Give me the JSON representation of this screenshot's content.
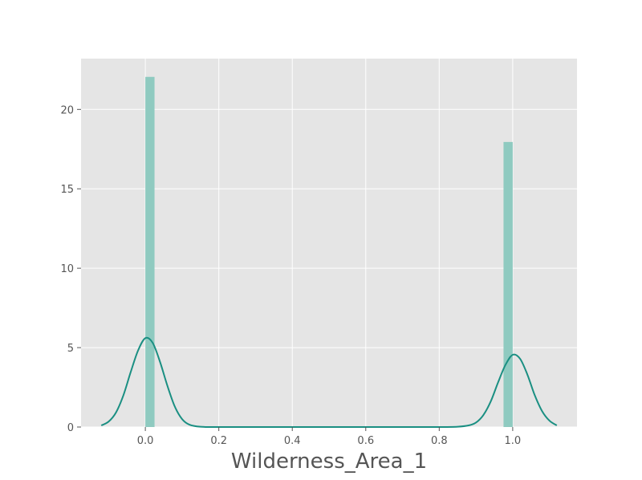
{
  "chart_data": {
    "type": "bar",
    "title": "",
    "xlabel": "Wilderness_Area_1",
    "ylabel": "",
    "xlim": [
      -0.175,
      1.175
    ],
    "ylim": [
      0,
      23.2
    ],
    "grid": true,
    "x_ticks": [
      0.0,
      0.2,
      0.4,
      0.6,
      0.8,
      1.0
    ],
    "x_tick_labels": [
      "0.0",
      "0.2",
      "0.4",
      "0.6",
      "0.8",
      "1.0"
    ],
    "y_ticks": [
      0,
      5,
      10,
      15,
      20
    ],
    "y_tick_labels": [
      "0",
      "5",
      "10",
      "15",
      "20"
    ],
    "histogram": {
      "bars": [
        {
          "x0": 0.0,
          "x1": 0.025,
          "value": 22.05
        },
        {
          "x0": 0.975,
          "x1": 1.0,
          "value": 17.95
        }
      ]
    },
    "kde": {
      "x": [
        -0.12,
        -0.1,
        -0.08,
        -0.06,
        -0.04,
        -0.02,
        0.0,
        0.02,
        0.04,
        0.06,
        0.08,
        0.1,
        0.12,
        0.15,
        0.2,
        0.3,
        0.4,
        0.5,
        0.6,
        0.7,
        0.8,
        0.85,
        0.88,
        0.9,
        0.92,
        0.94,
        0.96,
        0.98,
        1.0,
        1.02,
        1.04,
        1.06,
        1.08,
        1.1,
        1.12
      ],
      "y": [
        0.1,
        0.34,
        0.91,
        1.98,
        3.45,
        4.81,
        5.6,
        5.3,
        4.1,
        2.6,
        1.3,
        0.5,
        0.15,
        0.02,
        0.0,
        0.0,
        0.0,
        0.0,
        0.0,
        0.0,
        0.0,
        0.02,
        0.1,
        0.28,
        0.75,
        1.6,
        2.8,
        3.9,
        4.55,
        4.3,
        3.3,
        2.0,
        1.0,
        0.4,
        0.1
      ]
    },
    "colors": {
      "bar_fill": "#8fcac0",
      "kde_line": "#1a8f82",
      "plot_bg": "#e5e5e5",
      "grid": "#ffffff",
      "tick_text": "#555555"
    }
  }
}
